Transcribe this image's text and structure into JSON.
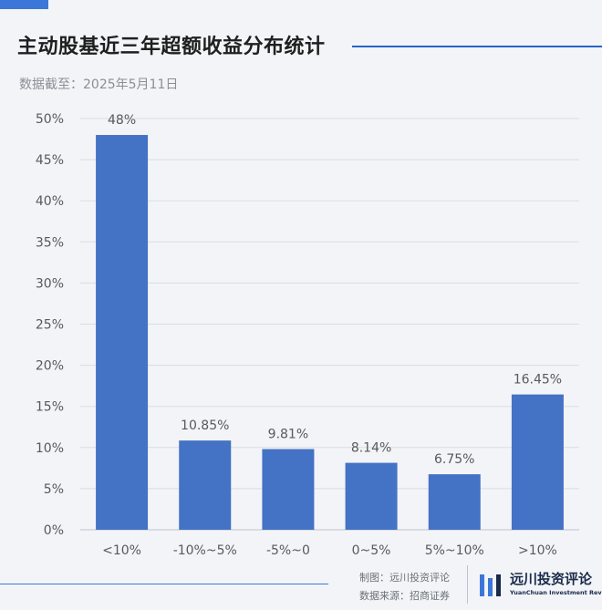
{
  "header": {
    "title": "主动股基近三年超额收益分布统计",
    "subtitle": "数据截至：2025年5月11日"
  },
  "colors": {
    "bar": "#4472c4",
    "accent": "#3b77d8",
    "grid": "#d9dde3",
    "text": "#595959"
  },
  "chart_data": {
    "type": "bar",
    "categories": [
      "<10%",
      "-10%~5%",
      "-5%~0",
      "0~5%",
      "5%~10%",
      ">10%"
    ],
    "values": [
      48,
      10.85,
      9.81,
      8.14,
      6.75,
      16.45
    ],
    "data_labels": [
      "48%",
      "10.85%",
      "9.81%",
      "8.14%",
      "6.75%",
      "16.45%"
    ],
    "ylim": [
      0,
      50
    ],
    "yticks": [
      "0%",
      "5%",
      "10%",
      "15%",
      "20%",
      "25%",
      "30%",
      "35%",
      "40%",
      "45%",
      "50%"
    ],
    "grid": true
  },
  "footer": {
    "made_by": "制图：远川投资评论",
    "source": "数据来源：招商证券",
    "logo_name": "远川投资评论",
    "logo_sub": "YuanChuan Investment Review",
    "logo_icon": "bars-logo-icon"
  }
}
